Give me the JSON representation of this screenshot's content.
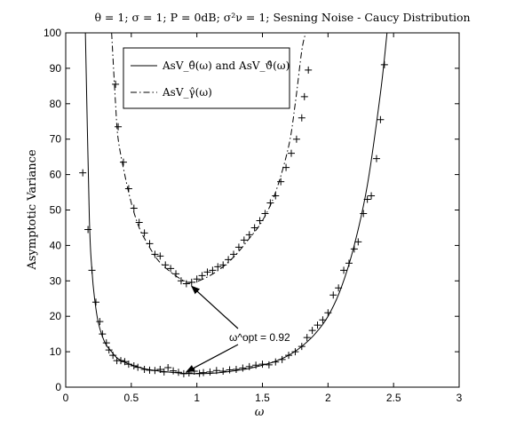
{
  "chart_data": {
    "type": "line",
    "title": "θ = 1; σ = 1; P = 0dB; σ²ν = 1; Sesning Noise - Caucy Distribution",
    "xlabel": "ω",
    "ylabel": "Asymptotic Variance",
    "xlim": [
      0,
      3
    ],
    "ylim": [
      0,
      100
    ],
    "xticks": [
      "0",
      "0.5",
      "1",
      "1.5",
      "2",
      "2.5",
      "3"
    ],
    "yticks": [
      "0",
      "10",
      "20",
      "30",
      "40",
      "50",
      "60",
      "70",
      "80",
      "90",
      "100"
    ],
    "grid": false,
    "legend_position": "top-left",
    "series": [
      {
        "name": "AsV_θ̂(ω) and AsV_ϑ̂(ω)",
        "style": "solid",
        "x": [
          0.15,
          0.18,
          0.2,
          0.22,
          0.25,
          0.3,
          0.35,
          0.4,
          0.5,
          0.6,
          0.7,
          0.8,
          0.9,
          1.0,
          1.1,
          1.2,
          1.3,
          1.4,
          1.5,
          1.6,
          1.7,
          1.8,
          1.9,
          2.0,
          2.1,
          2.2,
          2.3,
          2.4,
          2.45
        ],
        "y": [
          100,
          48,
          33,
          25,
          18,
          12.5,
          10,
          8,
          6.3,
          5.2,
          4.6,
          4.2,
          3.9,
          3.8,
          3.9,
          4.2,
          4.7,
          5.3,
          6.2,
          7.3,
          9,
          11.5,
          15,
          20,
          28,
          40,
          57,
          83,
          100
        ]
      },
      {
        "name": "AsV_γ̂(ω)",
        "style": "dashdot",
        "x": [
          0.35,
          0.38,
          0.4,
          0.45,
          0.5,
          0.55,
          0.6,
          0.7,
          0.8,
          0.9,
          0.95,
          1.0,
          1.1,
          1.2,
          1.3,
          1.4,
          1.5,
          1.6,
          1.7,
          1.75,
          1.8,
          1.83
        ],
        "y": [
          100,
          80,
          70,
          60,
          52,
          46,
          42,
          36,
          32.5,
          30,
          29.5,
          29.8,
          31.5,
          34,
          37.5,
          42,
          47,
          55,
          68,
          80,
          95,
          100
        ]
      }
    ],
    "markers": {
      "symbol": "+",
      "points": [
        [
          0.13,
          60.5
        ],
        [
          0.17,
          44.5
        ],
        [
          0.2,
          33
        ],
        [
          0.23,
          24
        ],
        [
          0.26,
          18.5
        ],
        [
          0.28,
          15
        ],
        [
          0.31,
          12.5
        ],
        [
          0.33,
          10.5
        ],
        [
          0.36,
          9
        ],
        [
          0.39,
          7.5
        ],
        [
          0.42,
          7.5
        ],
        [
          0.45,
          7.2
        ],
        [
          0.48,
          6.5
        ],
        [
          0.52,
          6
        ],
        [
          0.55,
          5.6
        ],
        [
          0.6,
          5
        ],
        [
          0.64,
          4.8
        ],
        [
          0.68,
          4.7
        ],
        [
          0.72,
          5
        ],
        [
          0.75,
          4.3
        ],
        [
          0.78,
          5.5
        ],
        [
          0.82,
          4.6
        ],
        [
          0.86,
          4.2
        ],
        [
          0.9,
          3.8
        ],
        [
          0.94,
          4
        ],
        [
          0.98,
          4.5
        ],
        [
          1.02,
          3.9
        ],
        [
          1.05,
          4.1
        ],
        [
          1.1,
          4.3
        ],
        [
          1.15,
          4.7
        ],
        [
          1.2,
          4.5
        ],
        [
          1.25,
          4.9
        ],
        [
          1.3,
          5
        ],
        [
          1.35,
          5.4
        ],
        [
          1.4,
          5.8
        ],
        [
          1.45,
          6.2
        ],
        [
          1.5,
          6.5
        ],
        [
          1.55,
          6.3
        ],
        [
          1.6,
          7.1
        ],
        [
          1.65,
          7.8
        ],
        [
          1.7,
          9
        ],
        [
          1.75,
          10
        ],
        [
          1.8,
          11.5
        ],
        [
          1.84,
          14
        ],
        [
          1.88,
          16
        ],
        [
          1.92,
          17.5
        ],
        [
          1.96,
          19
        ],
        [
          2.0,
          21
        ],
        [
          2.04,
          26
        ],
        [
          2.08,
          28
        ],
        [
          2.12,
          33
        ],
        [
          2.16,
          35
        ],
        [
          2.2,
          39
        ],
        [
          2.23,
          41
        ],
        [
          2.27,
          49
        ],
        [
          2.3,
          53
        ],
        [
          2.33,
          54
        ],
        [
          2.37,
          64.5
        ],
        [
          2.4,
          75.5
        ],
        [
          2.43,
          91
        ],
        [
          0.38,
          85.5
        ],
        [
          0.4,
          73.5
        ],
        [
          0.44,
          63.5
        ],
        [
          0.48,
          56
        ],
        [
          0.52,
          50.5
        ],
        [
          0.56,
          46.5
        ],
        [
          0.6,
          43.5
        ],
        [
          0.64,
          40.5
        ],
        [
          0.68,
          37.5
        ],
        [
          0.72,
          37
        ],
        [
          0.76,
          34.5
        ],
        [
          0.8,
          33.5
        ],
        [
          0.84,
          32
        ],
        [
          0.88,
          30
        ],
        [
          0.92,
          29.2
        ],
        [
          0.96,
          29.6
        ],
        [
          1.0,
          30.5
        ],
        [
          1.04,
          31.5
        ],
        [
          1.08,
          32.5
        ],
        [
          1.12,
          33
        ],
        [
          1.16,
          34
        ],
        [
          1.2,
          34.5
        ],
        [
          1.24,
          36
        ],
        [
          1.28,
          37.5
        ],
        [
          1.32,
          39.5
        ],
        [
          1.36,
          41.5
        ],
        [
          1.4,
          43
        ],
        [
          1.44,
          45
        ],
        [
          1.48,
          47
        ],
        [
          1.52,
          49
        ],
        [
          1.56,
          52
        ],
        [
          1.6,
          54
        ],
        [
          1.64,
          58
        ],
        [
          1.68,
          62
        ],
        [
          1.72,
          66
        ],
        [
          1.76,
          70
        ],
        [
          1.8,
          76
        ],
        [
          1.82,
          82
        ],
        [
          1.85,
          89.5
        ]
      ]
    },
    "legend": [
      {
        "label": "AsV_θ̂(ω) and AsV_ϑ̂(ω)",
        "style": "solid"
      },
      {
        "label": "AsV_γ̂(ω)",
        "style": "dashdot"
      }
    ],
    "annotation": {
      "text": "ω^opt = 0.92",
      "arrows_to": [
        [
          0.96,
          29.5
        ],
        [
          0.92,
          3.8
        ]
      ]
    }
  }
}
